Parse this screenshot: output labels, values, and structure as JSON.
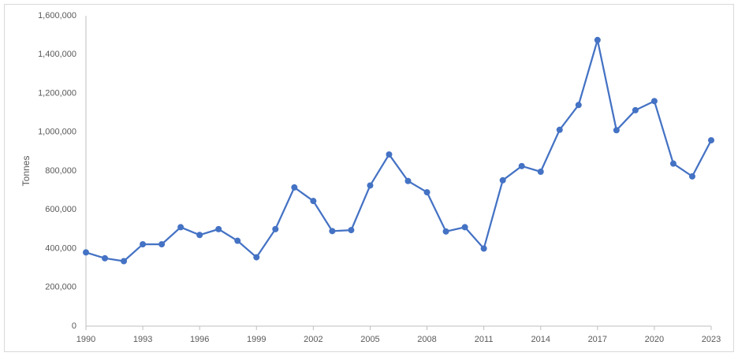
{
  "chart_data": {
    "type": "line",
    "y_label": "Tonnes",
    "x": [
      1990,
      1991,
      1992,
      1993,
      1994,
      1995,
      1996,
      1997,
      1998,
      1999,
      2000,
      2001,
      2002,
      2003,
      2004,
      2005,
      2006,
      2007,
      2008,
      2009,
      2010,
      2011,
      2012,
      2013,
      2014,
      2015,
      2016,
      2017,
      2018,
      2019,
      2020,
      2021,
      2022,
      2023
    ],
    "series": [
      {
        "name": "Tonnes",
        "color": "#4472c4",
        "values": [
          380000,
          350000,
          335000,
          422000,
          422000,
          510000,
          470000,
          500000,
          440000,
          355000,
          500000,
          715000,
          645000,
          490000,
          495000,
          725000,
          885000,
          748000,
          690000,
          488000,
          510000,
          400000,
          752000,
          825000,
          796000,
          1012000,
          1140000,
          1475000,
          1010000,
          1113000,
          1160000,
          838000,
          772000,
          958000
        ]
      }
    ],
    "xlim": [
      1990,
      2023
    ],
    "xticks": [
      1990,
      1993,
      1996,
      1999,
      2002,
      2005,
      2008,
      2011,
      2014,
      2017,
      2020,
      2023
    ],
    "ylim": [
      0,
      1600000
    ],
    "yticks": [
      0,
      {
        "value": 200000,
        "label": "200,000"
      },
      {
        "value": 400000,
        "label": "400,000"
      },
      {
        "value": 600000,
        "label": "600,000"
      },
      {
        "value": 800000,
        "label": "800,000"
      },
      {
        "value": 1000000,
        "label": "1,000,000"
      },
      {
        "value": 1200000,
        "label": "1,200,000"
      },
      {
        "value": 1400000,
        "label": "1,400,000"
      },
      {
        "value": 1600000,
        "label": "1,600,000"
      }
    ],
    "grid": false
  }
}
